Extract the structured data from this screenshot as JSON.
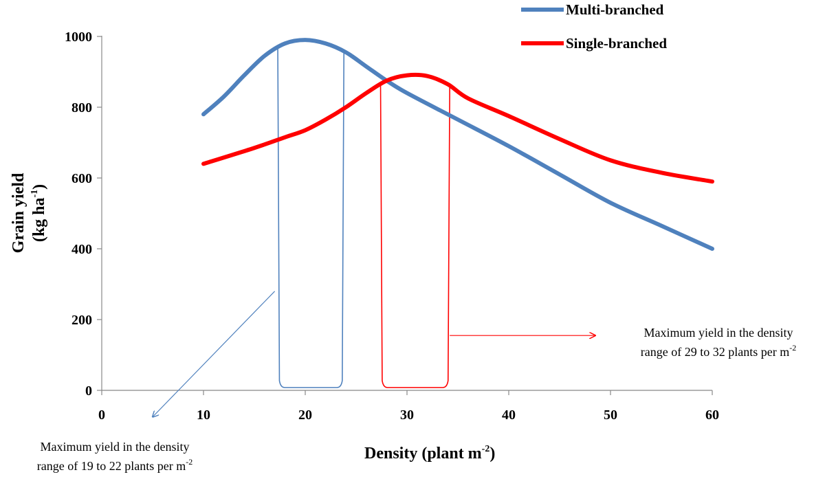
{
  "chart_data": {
    "type": "line",
    "xlabel_main": "Density (plant m",
    "xlabel_sup": "-2",
    "xlabel_end": ")",
    "ylabel_line1": "Grain yield",
    "ylabel_line2_main": "(kg ha",
    "ylabel_line2_sup": "-1",
    "ylabel_line2_end": ")",
    "xlim": [
      0,
      60
    ],
    "ylim": [
      0,
      1000
    ],
    "x_ticks": [
      0,
      10,
      20,
      30,
      40,
      50,
      60
    ],
    "y_ticks": [
      0,
      200,
      400,
      600,
      800,
      1000
    ],
    "legend_position": "top-right",
    "series": [
      {
        "name": "Multi-branched",
        "color": "#4F81BD",
        "x": [
          10,
          12,
          14,
          16,
          18,
          20,
          22,
          24,
          26,
          28,
          30,
          35,
          40,
          45,
          50,
          55,
          60
        ],
        "y": [
          780,
          830,
          890,
          945,
          980,
          990,
          980,
          955,
          915,
          875,
          840,
          765,
          690,
          610,
          530,
          465,
          400
        ]
      },
      {
        "name": "Single-branched",
        "color": "#FF0000",
        "x": [
          10,
          15,
          18,
          20,
          22,
          24,
          26,
          28,
          30,
          32,
          34,
          36,
          40,
          45,
          50,
          55,
          60
        ],
        "y": [
          640,
          685,
          715,
          735,
          765,
          800,
          840,
          875,
          890,
          888,
          865,
          825,
          775,
          710,
          650,
          615,
          590
        ]
      }
    ],
    "annotations": [
      {
        "id": "multi",
        "color": "#4F81BD",
        "range": [
          17.3,
          23.8
        ],
        "bracket_bottom": 8,
        "arrow_start": [
          17.0,
          280
        ],
        "arrow_end": [
          5.0,
          -75
        ],
        "line1": "Maximum yield in the density",
        "line2_main": "range of 19 to 22 plants per m",
        "line2_sup": "-2"
      },
      {
        "id": "single",
        "color": "#FF0000",
        "range": [
          27.4,
          34.2
        ],
        "bracket_bottom": 8,
        "arrow_start": [
          34.2,
          155
        ],
        "arrow_end": [
          48.5,
          155
        ],
        "line1": "Maximum yield in the density",
        "line2_main": "range of 29 to 32 plants per m",
        "line2_sup": "-2"
      }
    ]
  }
}
